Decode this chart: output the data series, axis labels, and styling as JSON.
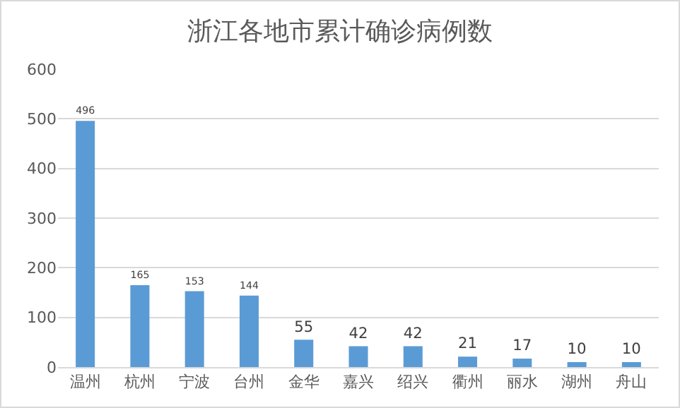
{
  "chart_data": {
    "type": "bar",
    "title": "浙江各地市累计确诊病例数",
    "categories": [
      "温州",
      "杭州",
      "宁波",
      "台州",
      "金华",
      "嘉兴",
      "绍兴",
      "衢州",
      "丽水",
      "湖州",
      "舟山"
    ],
    "values": [
      496,
      165,
      153,
      144,
      55,
      42,
      42,
      21,
      17,
      10,
      10
    ],
    "color": "#5b9bd5",
    "ylim": [
      0,
      600
    ],
    "yticks": [
      0,
      100,
      200,
      300,
      400,
      500,
      600
    ],
    "grid": "y",
    "data_labels": true
  }
}
